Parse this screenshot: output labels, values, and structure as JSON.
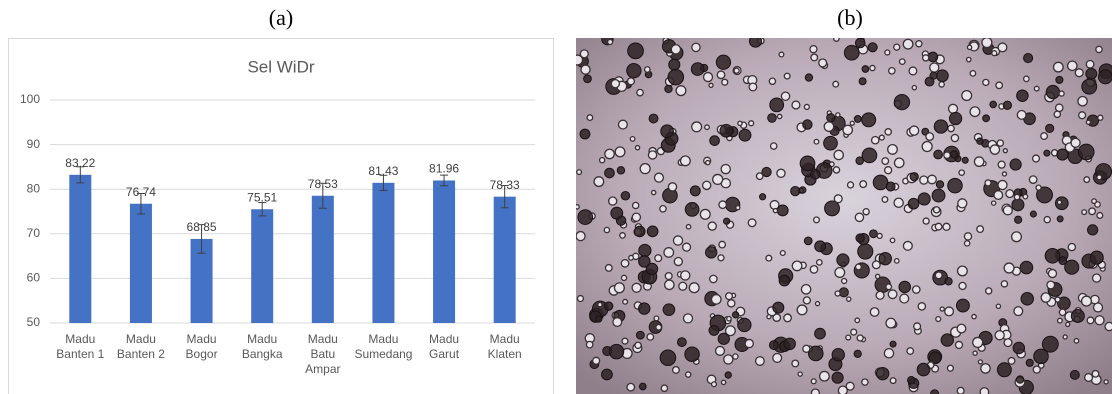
{
  "panel_labels": [
    "(a)",
    "(b)"
  ],
  "chart_data": {
    "type": "bar",
    "title": "Sel WiDr",
    "categories": [
      "Madu Banten 1",
      "Madu Banten 2",
      "Madu Bogor",
      "Madu Bangka",
      "Madu Batu Ampar",
      "Madu Sumedang",
      "Madu Garut",
      "Madu Klaten"
    ],
    "values": [
      83.22,
      76.74,
      68.85,
      75.51,
      78.53,
      81.43,
      81.96,
      78.33
    ],
    "errors": [
      1.8,
      2.3,
      3.2,
      1.5,
      2.8,
      1.7,
      1.2,
      2.5
    ],
    "color": "#4472c4",
    "ylim": [
      50,
      100
    ],
    "yticks": [
      50,
      60,
      70,
      80,
      90,
      100
    ],
    "grid": true
  }
}
